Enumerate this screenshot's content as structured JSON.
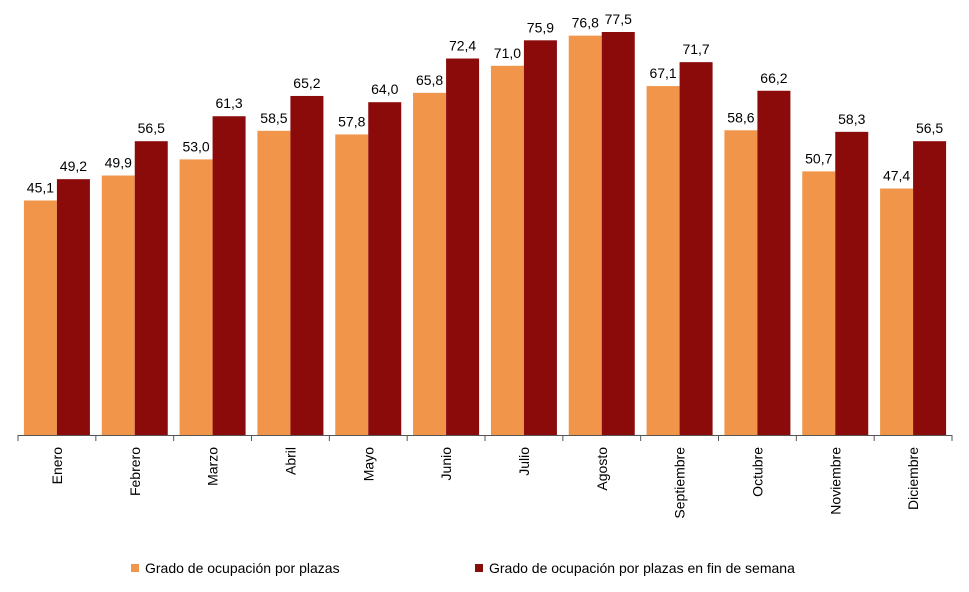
{
  "chart_data": {
    "type": "bar",
    "title": "",
    "xlabel": "",
    "ylabel": "",
    "ylim": [
      0,
      80
    ],
    "grid": false,
    "legend_position": "bottom",
    "categories": [
      "Enero",
      "Febrero",
      "Marzo",
      "Abril",
      "Mayo",
      "Junio",
      "Julio",
      "Agosto",
      "Septiembre",
      "Octubre",
      "Noviembre",
      "Diciembre"
    ],
    "series": [
      {
        "name": "Grado de ocupación por plazas",
        "color": "#F0954A",
        "values": [
          45.1,
          49.9,
          53.0,
          58.5,
          57.8,
          65.8,
          71.0,
          76.8,
          67.1,
          58.6,
          50.7,
          47.4
        ],
        "labels": [
          "45,1",
          "49,9",
          "53,0",
          "58,5",
          "57,8",
          "65,8",
          "71,0",
          "76,8",
          "67,1",
          "58,6",
          "50,7",
          "47,4"
        ]
      },
      {
        "name": "Grado de ocupación por plazas en fin de semana",
        "color": "#8B0A0A",
        "values": [
          49.2,
          56.5,
          61.3,
          65.2,
          64.0,
          72.4,
          75.9,
          77.5,
          71.7,
          66.2,
          58.3,
          56.5
        ],
        "labels": [
          "49,2",
          "56,5",
          "61,3",
          "65,2",
          "64,0",
          "72,4",
          "75,9",
          "77,5",
          "71,7",
          "66,2",
          "58,3",
          "56,5"
        ]
      }
    ]
  }
}
